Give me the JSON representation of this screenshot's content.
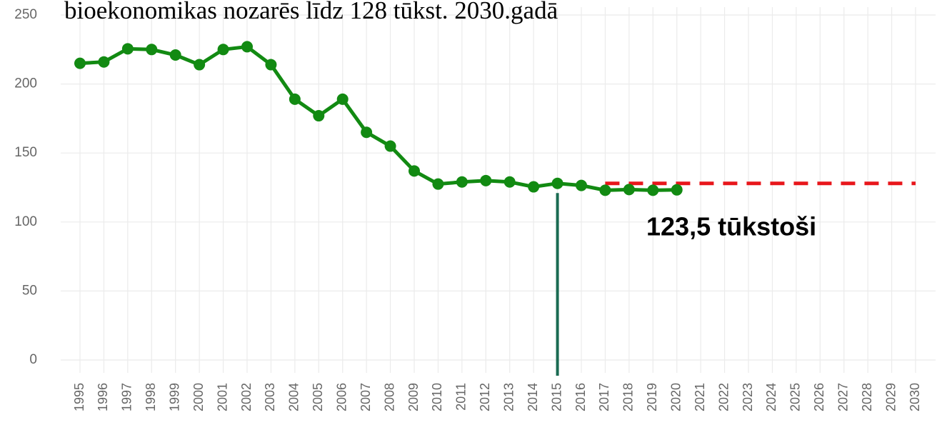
{
  "chart_data": {
    "type": "line",
    "title": "bioekonomikas nozarēs līdz 128 tūkst. 2030.gadā",
    "annotation": "123,5 tūkstoši",
    "categories": [
      "1995",
      "1996",
      "1997",
      "1998",
      "1999",
      "2000",
      "2001",
      "2002",
      "2003",
      "2004",
      "2005",
      "2006",
      "2007",
      "2008",
      "2009",
      "2010",
      "2011",
      "2012",
      "2013",
      "2014",
      "2015",
      "2016",
      "2017",
      "2018",
      "2019",
      "2020",
      "2021",
      "2022",
      "2023",
      "2024",
      "2025",
      "2026",
      "2027",
      "2028",
      "2029",
      "2030"
    ],
    "series": [
      {
        "color": "#e8161b",
        "dashed": true,
        "markers": false,
        "values": [
          null,
          null,
          null,
          null,
          null,
          null,
          null,
          null,
          null,
          null,
          null,
          null,
          null,
          null,
          null,
          null,
          null,
          null,
          null,
          null,
          null,
          null,
          128,
          128,
          128,
          128,
          128,
          128,
          128,
          128,
          128,
          128,
          128,
          128,
          128,
          128
        ]
      },
      {
        "color": "#128a12",
        "dashed": false,
        "markers": true,
        "values": [
          215,
          216,
          225.5,
          225,
          221,
          214,
          225,
          227,
          214,
          189,
          177,
          189,
          165,
          155,
          137,
          127.5,
          129,
          130,
          129,
          125.5,
          128,
          126.5,
          123,
          123.5,
          123,
          123.3,
          null,
          null,
          null,
          null,
          null,
          null,
          null,
          null,
          null,
          null
        ]
      }
    ],
    "reference_line": {
      "category": "2015",
      "value": 121,
      "color": "#1a6b52"
    },
    "ylim": [
      0,
      250
    ],
    "yticks": [
      0,
      50,
      100,
      150,
      200,
      250
    ],
    "grid": true
  }
}
